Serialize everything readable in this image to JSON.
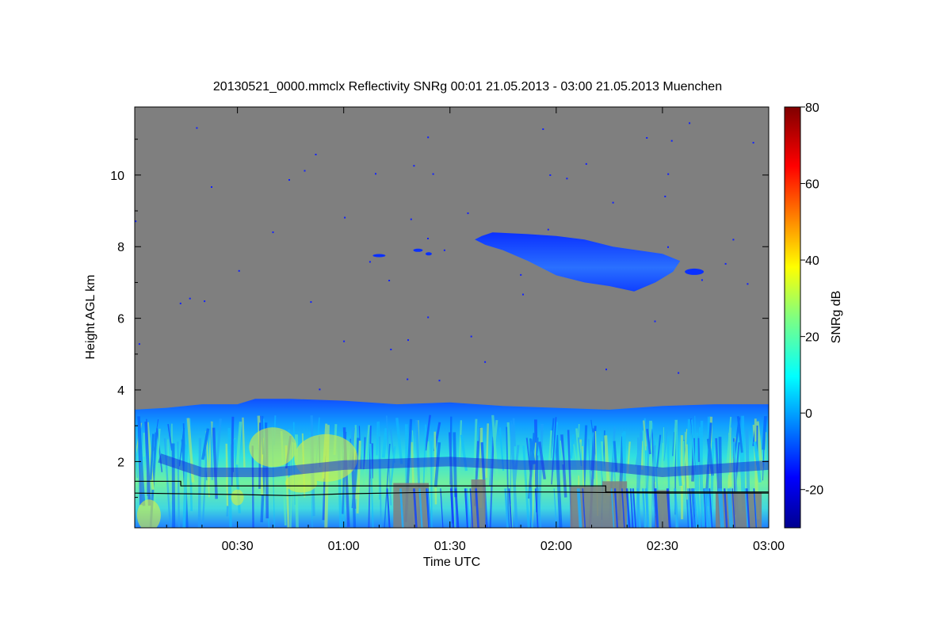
{
  "chart_data": {
    "type": "heatmap",
    "title": "20130521_0000.mmclx Reflectivity SNRg   00:01 21.05.2013 - 03:00 21.05.2013 Muenchen",
    "xlabel": "Time UTC",
    "ylabel": "Height AGL km",
    "xlim": [
      "00:01",
      "03:00"
    ],
    "ylim_km": [
      0.15,
      11.9
    ],
    "x_ticks": [
      "00:30",
      "01:00",
      "01:30",
      "02:00",
      "02:30",
      "03:00"
    ],
    "x_tick_minutes": [
      30,
      60,
      90,
      120,
      150,
      180
    ],
    "y_ticks": [
      2,
      4,
      6,
      8,
      10
    ],
    "colorbar": {
      "label": "SNRg dB",
      "range": [
        -30,
        80
      ],
      "ticks": [
        -20,
        0,
        20,
        40,
        60,
        80
      ],
      "colormap": "jet"
    },
    "background_color": "#7f7f7f",
    "features": {
      "boundary_layer_top_km": [
        {
          "t_min": 1,
          "h_km": 3.45
        },
        {
          "t_min": 10,
          "h_km": 3.5
        },
        {
          "t_min": 20,
          "h_km": 3.6
        },
        {
          "t_min": 30,
          "h_km": 3.6
        },
        {
          "t_min": 35,
          "h_km": 3.75
        },
        {
          "t_min": 45,
          "h_km": 3.75
        },
        {
          "t_min": 60,
          "h_km": 3.7
        },
        {
          "t_min": 75,
          "h_km": 3.6
        },
        {
          "t_min": 90,
          "h_km": 3.65
        },
        {
          "t_min": 105,
          "h_km": 3.55
        },
        {
          "t_min": 120,
          "h_km": 3.5
        },
        {
          "t_min": 135,
          "h_km": 3.45
        },
        {
          "t_min": 150,
          "h_km": 3.55
        },
        {
          "t_min": 165,
          "h_km": 3.6
        },
        {
          "t_min": 180,
          "h_km": 3.6
        }
      ],
      "upper_cloud": {
        "t_start_min": 97,
        "t_end_min": 158,
        "top_km": 8.4,
        "base_km": 6.7,
        "snr_db": -10
      },
      "black_line_upper_km": [
        {
          "t_min": 1,
          "h_km": 1.45
        },
        {
          "t_min": 14,
          "h_km": 1.45
        },
        {
          "t_min": 14,
          "h_km": 1.32
        },
        {
          "t_min": 134,
          "h_km": 1.32
        },
        {
          "t_min": 134,
          "h_km": 1.15
        },
        {
          "t_min": 180,
          "h_km": 1.15
        }
      ],
      "black_line_lower_km": [
        {
          "t_min": 1,
          "h_km": 1.12
        },
        {
          "t_min": 30,
          "h_km": 1.08
        },
        {
          "t_min": 45,
          "h_km": 1.05
        },
        {
          "t_min": 60,
          "h_km": 1.1
        },
        {
          "t_min": 90,
          "h_km": 1.15
        },
        {
          "t_min": 120,
          "h_km": 1.15
        },
        {
          "t_min": 150,
          "h_km": 1.12
        },
        {
          "t_min": 180,
          "h_km": 1.12
        }
      ]
    }
  }
}
